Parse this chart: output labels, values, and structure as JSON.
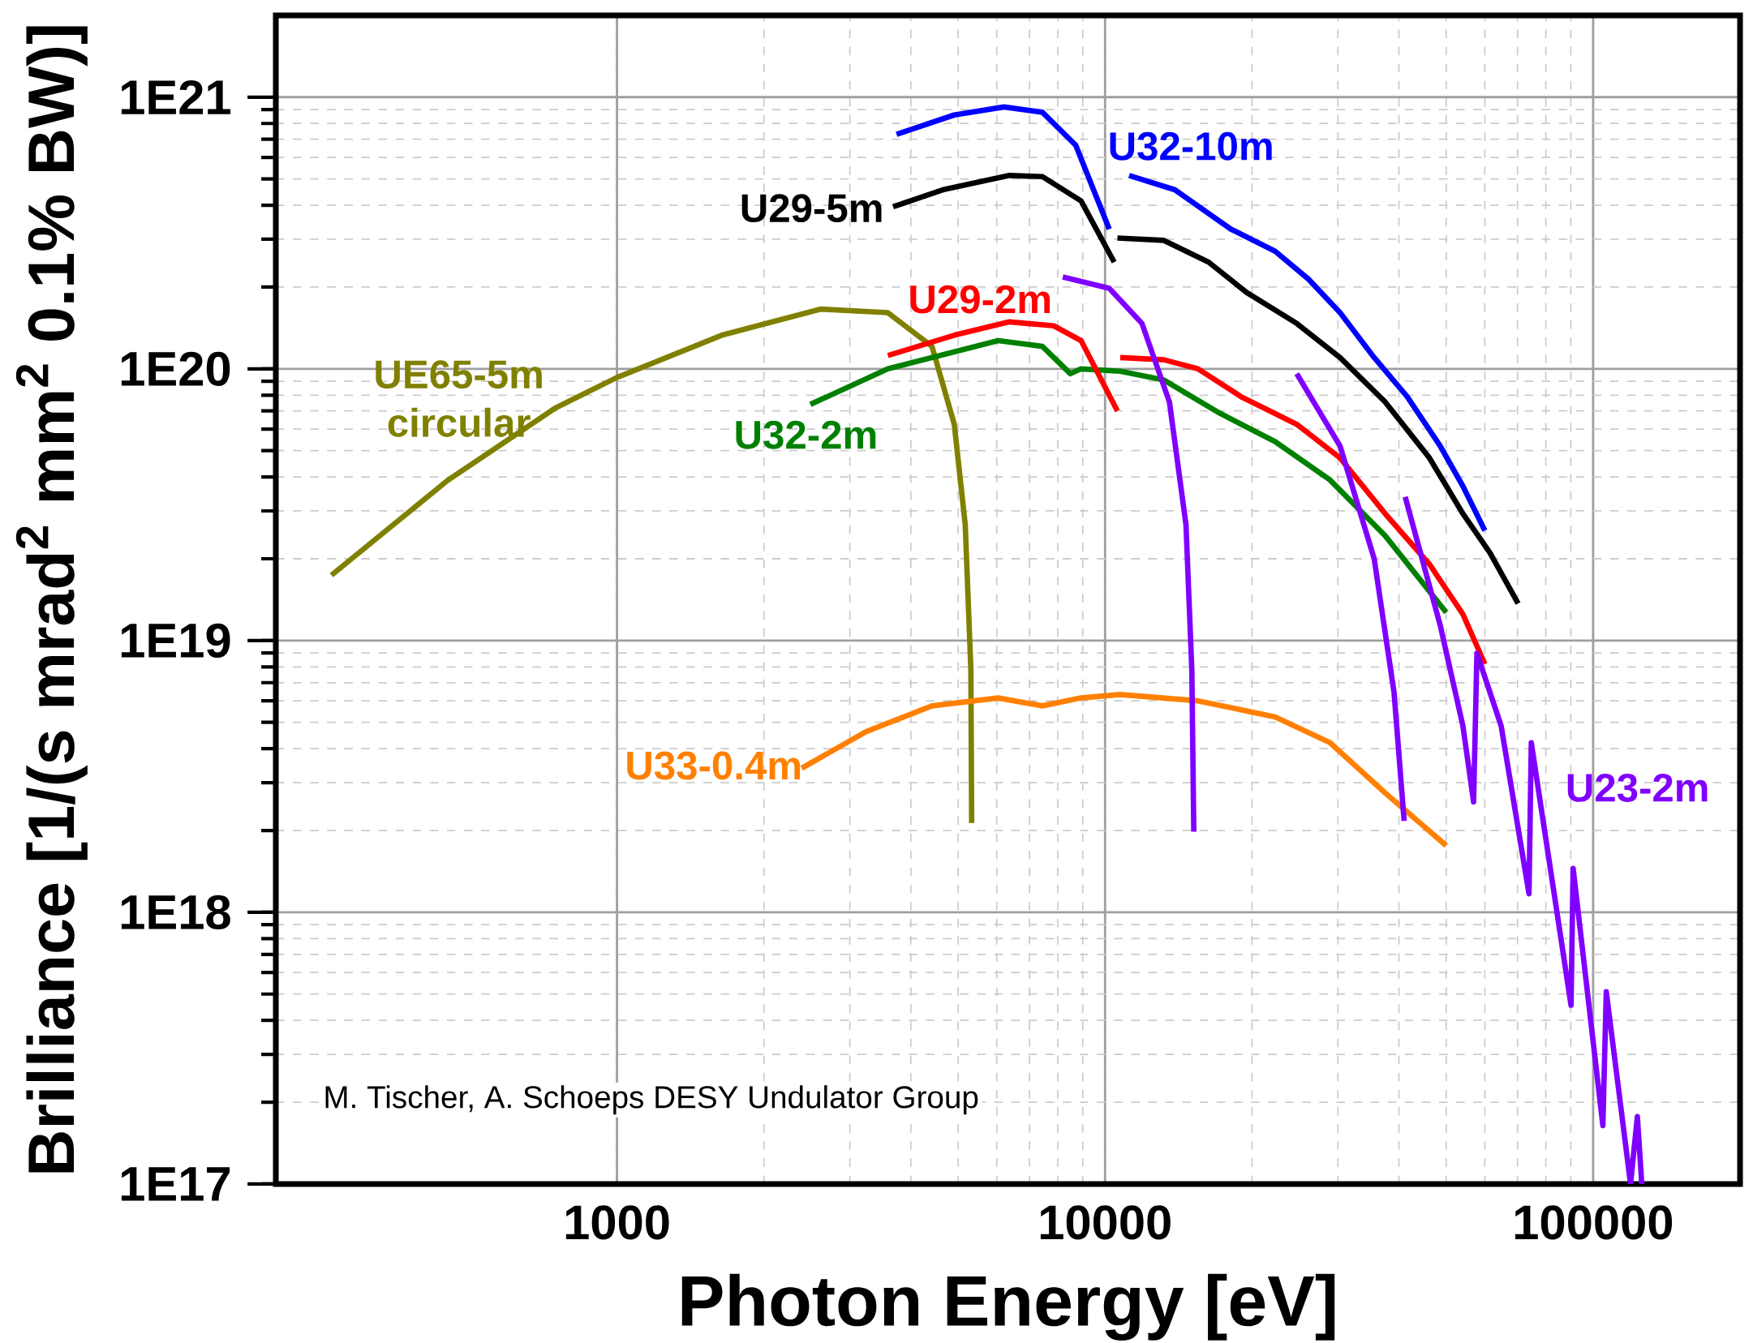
{
  "chart_data": {
    "type": "line",
    "xlabel": "Photon Energy [eV]",
    "ylabel": "Brilliance [1/(s mrad$^{2}$ mm$^{2}$  0.1% BW)]",
    "annotations": [
      "M. Tischer, A. Schoeps  DESY Undulator Group"
    ],
    "log": "xy",
    "grid": true,
    "xlim": [
      200,
      200000
    ],
    "ylim": [
      1e+17,
      2e+21
    ],
    "xticks": [
      1000,
      10000,
      100000
    ],
    "yticks": [
      {
        "value": 1e+17,
        "label": "1E17"
      },
      {
        "value": 1e+18,
        "label": "1E18"
      },
      {
        "value": 1e+19,
        "label": "1E19"
      },
      {
        "value": 1e+20,
        "label": "1E20"
      },
      {
        "value": 1e+21,
        "label": "1E21"
      }
    ],
    "series": [
      {
        "name": "UE65-5m circular",
        "color": "#808000",
        "x": [
          260,
          450,
          750,
          1000,
          1640,
          2620,
          3590,
          4420,
          4910,
          5170,
          5310,
          5330
        ],
        "values": [
          1.74e+19,
          3.89e+19,
          7.2e+19,
          9.3e+19,
          1.33e+20,
          1.66e+20,
          1.61e+20,
          1.21e+20,
          6.25e+19,
          2.67e+19,
          7.8e+18,
          2.13e+18
        ]
      },
      {
        "name": "U32-2m",
        "color": "#008000",
        "x": [
          2490,
          3590,
          6040,
          7440,
          8490,
          8930,
          10740,
          13200,
          17100,
          22300,
          28900,
          37500,
          50000
        ],
        "values": [
          7.4e+19,
          1e+20,
          1.27e+20,
          1.21e+20,
          9.6e+19,
          1e+20,
          9.8e+19,
          9.1e+19,
          6.9e+19,
          5.4e+19,
          3.9e+19,
          2.43e+19,
          1.27e+19
        ]
      },
      {
        "name": "U29-2m",
        "color": "#ff0000",
        "x": [
          3590,
          4910,
          6370,
          7850,
          8930,
          10600,
          10670,
          10740,
          13200,
          15500,
          19000,
          24700,
          30300,
          37500,
          46200,
          54100,
          60000
        ],
        "values": [
          1.12e+20,
          1.33e+20,
          1.49e+20,
          1.44e+20,
          1.27e+20,
          7e+19,
          null,
          1.1e+20,
          1.08e+20,
          1e+20,
          7.9e+19,
          6.25e+19,
          4.7e+19,
          2.93e+19,
          1.91e+19,
          1.25e+19,
          8.2e+18
        ]
      },
      {
        "name": "U29-5m",
        "color": "#000000",
        "x": [
          3680,
          4650,
          6370,
          7440,
          8930,
          10440,
          10520,
          10600,
          13200,
          16300,
          19500,
          24700,
          30300,
          37500,
          46200,
          54100,
          61500,
          70200
        ],
        "values": [
          3.95e+20,
          4.56e+20,
          5.15e+20,
          5.1e+20,
          4.15e+20,
          2.47e+20,
          null,
          3.03e+20,
          2.97e+20,
          2.47e+20,
          1.91e+20,
          1.47e+20,
          1.1e+20,
          7.55e+19,
          4.7e+19,
          2.93e+19,
          2.1e+19,
          1.37e+19
        ]
      },
      {
        "name": "U32-10m",
        "color": "#0000ff",
        "x": [
          3740,
          4910,
          6210,
          7440,
          8710,
          10200,
          10700,
          11200,
          13900,
          18100,
          22300,
          26100,
          30300,
          35600,
          41600,
          48600,
          54100,
          60000
        ],
        "values": [
          7.3e+20,
          8.6e+20,
          9.2e+20,
          8.8e+20,
          6.65e+20,
          3.27e+20,
          null,
          5.15e+20,
          4.56e+20,
          3.27e+20,
          2.71e+20,
          2.14e+20,
          1.61e+20,
          1.1e+20,
          7.9e+19,
          5.2e+19,
          3.7e+19,
          2.54e+19
        ]
      },
      {
        "name": "U33-0.4m",
        "color": "#ff8000",
        "x": [
          2390,
          3240,
          4420,
          6040,
          7440,
          8930,
          10740,
          15500,
          22300,
          28900,
          37500,
          50000
        ],
        "values": [
          3.39e+18,
          4.62e+18,
          5.75e+18,
          6.15e+18,
          5.75e+18,
          6.15e+18,
          6.33e+18,
          6e+18,
          5.24e+18,
          4.21e+18,
          2.75e+18,
          1.76e+18
        ]
      },
      {
        "name": "U23-2m",
        "color": "#8000ff",
        "x": [
          8190,
          10200,
          11900,
          13550,
          14650,
          15060,
          15200,
          20000,
          24700,
          30300,
          35600,
          39100,
          41000,
          41100,
          41200,
          48600,
          54100,
          56900,
          57800,
          64800,
          73900,
          74700,
          90100,
          91000,
          104700,
          106400,
          119300,
          123200,
          125800
        ],
        "values": [
          2.18e+20,
          1.98e+20,
          1.47e+20,
          7.55e+19,
          2.67e+19,
          7.8e+18,
          1.98e+18,
          null,
          9.6e+19,
          5.2e+19,
          2e+19,
          6.44e+18,
          2.17e+18,
          null,
          3.38e+19,
          1.14e+19,
          4.85e+18,
          2.55e+18,
          8.98e+18,
          4.85e+18,
          1.17e+18,
          4.21e+18,
          4.55e+17,
          1.45e+18,
          1.64e+17,
          5.1e+17,
          1e+17,
          1.77e+17,
          1e+17
        ]
      }
    ]
  }
}
